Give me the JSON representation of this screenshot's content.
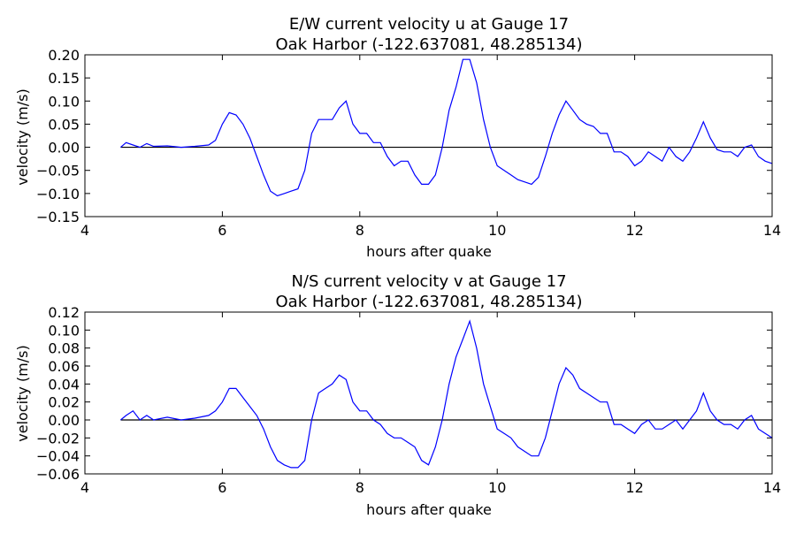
{
  "chart_data": [
    {
      "type": "line",
      "title": "E/W current velocity u at Gauge 17",
      "subtitle": "Oak Harbor  (-122.637081, 48.285134)",
      "xlabel": "hours after quake",
      "ylabel": "velocity (m/s)",
      "xlim": [
        4,
        14
      ],
      "ylim": [
        -0.15,
        0.2
      ],
      "xticks": [
        4,
        6,
        8,
        10,
        12,
        14
      ],
      "yticks": [
        -0.15,
        -0.1,
        -0.05,
        0.0,
        0.05,
        0.1,
        0.15,
        0.2
      ],
      "ytick_labels": [
        "−0.15",
        "−0.10",
        "−0.05",
        "0.00",
        "0.05",
        "0.10",
        "0.15",
        "0.20"
      ],
      "zero_line": true,
      "line_color": "#0000ff",
      "series": [
        {
          "x": [
            4.52,
            4.6,
            4.7,
            4.8,
            4.9,
            5.0,
            5.2,
            5.4,
            5.6,
            5.8,
            5.9,
            6.0,
            6.1,
            6.2,
            6.3,
            6.4,
            6.5,
            6.6,
            6.7,
            6.8,
            6.9,
            7.0,
            7.1,
            7.2,
            7.3,
            7.4,
            7.5,
            7.6,
            7.7,
            7.8,
            7.9,
            8.0,
            8.1,
            8.2,
            8.3,
            8.4,
            8.5,
            8.6,
            8.7,
            8.8,
            8.9,
            9.0,
            9.1,
            9.2,
            9.3,
            9.4,
            9.5,
            9.6,
            9.7,
            9.8,
            9.9,
            10.0,
            10.1,
            10.2,
            10.3,
            10.4,
            10.5,
            10.6,
            10.7,
            10.8,
            10.9,
            11.0,
            11.1,
            11.2,
            11.3,
            11.4,
            11.5,
            11.6,
            11.7,
            11.8,
            11.9,
            12.0,
            12.1,
            12.2,
            12.3,
            12.4,
            12.5,
            12.6,
            12.7,
            12.8,
            12.9,
            13.0,
            13.1,
            13.2,
            13.3,
            13.4,
            13.5,
            13.6,
            13.7,
            13.8,
            13.9,
            14.0
          ],
          "y": [
            0.0,
            0.01,
            0.005,
            0.0,
            0.008,
            0.002,
            0.003,
            0.0,
            0.002,
            0.005,
            0.015,
            0.05,
            0.075,
            0.07,
            0.05,
            0.02,
            -0.02,
            -0.06,
            -0.095,
            -0.105,
            -0.1,
            -0.095,
            -0.09,
            -0.05,
            0.03,
            0.06,
            0.06,
            0.06,
            0.085,
            0.1,
            0.05,
            0.03,
            0.03,
            0.01,
            0.01,
            -0.02,
            -0.04,
            -0.03,
            -0.03,
            -0.06,
            -0.08,
            -0.08,
            -0.06,
            0.0,
            0.08,
            0.13,
            0.19,
            0.19,
            0.14,
            0.06,
            0.0,
            -0.04,
            -0.05,
            -0.06,
            -0.07,
            -0.075,
            -0.08,
            -0.065,
            -0.02,
            0.03,
            0.07,
            0.1,
            0.08,
            0.06,
            0.05,
            0.045,
            0.03,
            0.03,
            -0.01,
            -0.01,
            -0.02,
            -0.04,
            -0.03,
            -0.01,
            -0.02,
            -0.03,
            0.0,
            -0.02,
            -0.03,
            -0.01,
            0.02,
            0.055,
            0.02,
            -0.005,
            -0.01,
            -0.01,
            -0.02,
            0.0,
            0.005,
            -0.02,
            -0.03,
            -0.035
          ]
        }
      ]
    },
    {
      "type": "line",
      "title": "N/S current velocity v at Gauge 17",
      "subtitle": "Oak Harbor  (-122.637081, 48.285134)",
      "xlabel": "hours after quake",
      "ylabel": "velocity (m/s)",
      "xlim": [
        4,
        14
      ],
      "ylim": [
        -0.06,
        0.12
      ],
      "xticks": [
        4,
        6,
        8,
        10,
        12,
        14
      ],
      "yticks": [
        -0.06,
        -0.04,
        -0.02,
        0.0,
        0.02,
        0.04,
        0.06,
        0.08,
        0.1,
        0.12
      ],
      "ytick_labels": [
        "−0.06",
        "−0.04",
        "−0.02",
        "0.00",
        "0.02",
        "0.04",
        "0.06",
        "0.08",
        "0.10",
        "0.12"
      ],
      "zero_line": true,
      "line_color": "#0000ff",
      "series": [
        {
          "x": [
            4.52,
            4.6,
            4.7,
            4.8,
            4.9,
            5.0,
            5.2,
            5.4,
            5.6,
            5.8,
            5.9,
            6.0,
            6.1,
            6.2,
            6.3,
            6.4,
            6.5,
            6.6,
            6.7,
            6.8,
            6.9,
            7.0,
            7.1,
            7.2,
            7.3,
            7.4,
            7.5,
            7.6,
            7.7,
            7.8,
            7.9,
            8.0,
            8.1,
            8.2,
            8.3,
            8.4,
            8.5,
            8.6,
            8.7,
            8.8,
            8.9,
            9.0,
            9.1,
            9.2,
            9.3,
            9.4,
            9.5,
            9.6,
            9.7,
            9.8,
            9.9,
            10.0,
            10.1,
            10.2,
            10.3,
            10.4,
            10.5,
            10.6,
            10.7,
            10.8,
            10.9,
            11.0,
            11.1,
            11.2,
            11.3,
            11.4,
            11.5,
            11.6,
            11.7,
            11.8,
            11.9,
            12.0,
            12.1,
            12.2,
            12.3,
            12.4,
            12.5,
            12.6,
            12.7,
            12.8,
            12.9,
            13.0,
            13.1,
            13.2,
            13.3,
            13.4,
            13.5,
            13.6,
            13.7,
            13.8,
            13.9,
            14.0
          ],
          "y": [
            0.0,
            0.005,
            0.01,
            0.0,
            0.005,
            0.0,
            0.003,
            0.0,
            0.002,
            0.005,
            0.01,
            0.02,
            0.035,
            0.035,
            0.025,
            0.015,
            0.005,
            -0.01,
            -0.03,
            -0.045,
            -0.05,
            -0.053,
            -0.053,
            -0.045,
            0.0,
            0.03,
            0.035,
            0.04,
            0.05,
            0.045,
            0.02,
            0.01,
            0.01,
            0.0,
            -0.005,
            -0.015,
            -0.02,
            -0.02,
            -0.025,
            -0.03,
            -0.045,
            -0.05,
            -0.03,
            0.0,
            0.04,
            0.07,
            0.09,
            0.11,
            0.08,
            0.04,
            0.015,
            -0.01,
            -0.015,
            -0.02,
            -0.03,
            -0.035,
            -0.04,
            -0.04,
            -0.02,
            0.01,
            0.04,
            0.058,
            0.05,
            0.035,
            0.03,
            0.025,
            0.02,
            0.02,
            -0.005,
            -0.005,
            -0.01,
            -0.015,
            -0.005,
            0.0,
            -0.01,
            -0.01,
            -0.005,
            0.0,
            -0.01,
            0.0,
            0.01,
            0.03,
            0.01,
            0.0,
            -0.005,
            -0.005,
            -0.01,
            0.0,
            0.005,
            -0.01,
            -0.015,
            -0.02
          ]
        }
      ]
    }
  ]
}
